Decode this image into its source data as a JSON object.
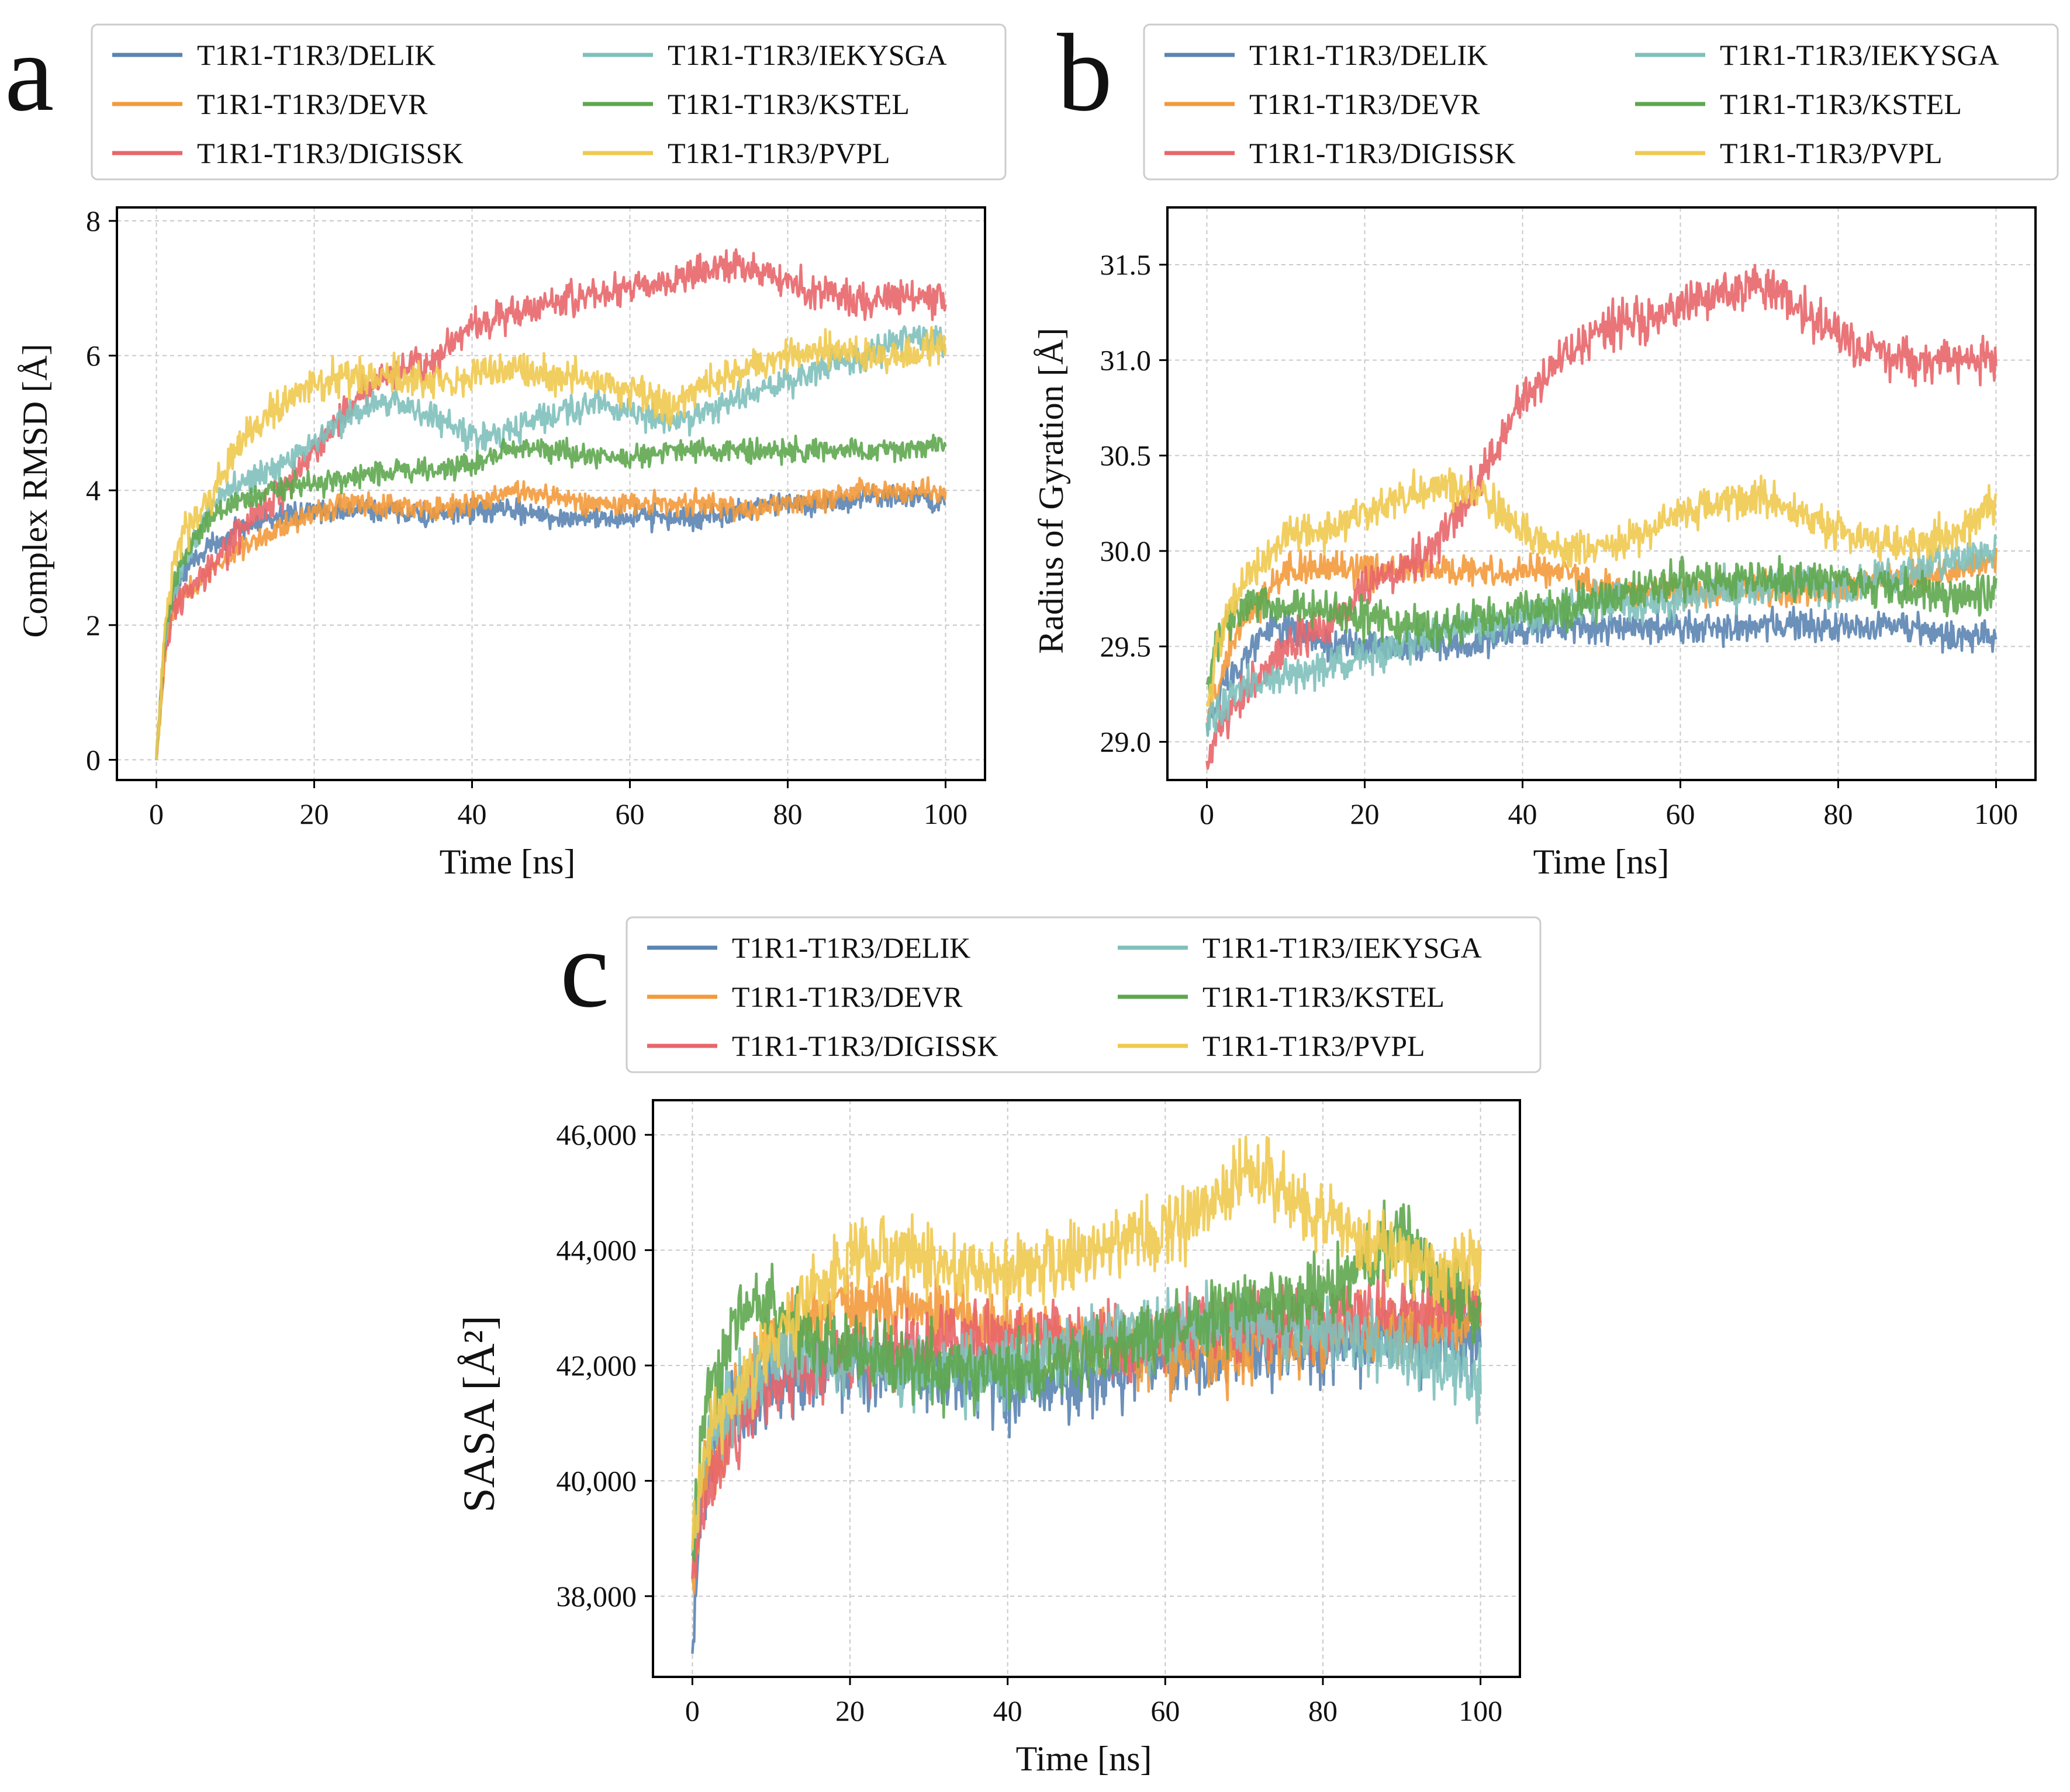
{
  "figure": {
    "panels_count": 3
  },
  "legend_labels": [
    "T1R1-T1R3/DELIK",
    "T1R1-T1R3/DEVR",
    "T1R1-T1R3/DIGISSK",
    "T1R1-T1R3/IEKYSGA",
    "T1R1-T1R3/KSTEL",
    "T1R1-T1R3/PVPL"
  ],
  "series_colors": {
    "T1R1-T1R3/DELIK": "#5b84b1",
    "T1R1-T1R3/DEVR": "#f39a3b",
    "T1R1-T1R3/DIGISSK": "#e8666a",
    "T1R1-T1R3/IEKYSGA": "#7fc0bb",
    "T1R1-T1R3/KSTEL": "#5ea74f",
    "T1R1-T1R3/PVPL": "#f0c94f"
  },
  "chart_data": [
    {
      "panel": "a",
      "type": "line",
      "title": "",
      "xlabel": "Time [ns]",
      "ylabel": "Complex RMSD [Å]",
      "xlim": [
        -5,
        105
      ],
      "ylim": [
        -0.3,
        8.2
      ],
      "xticks": [
        0,
        20,
        40,
        60,
        80,
        100
      ],
      "yticks": [
        0,
        2,
        4,
        6,
        8
      ],
      "ytick_labels": [
        "0",
        "2",
        "4",
        "6",
        "8"
      ],
      "legend_position": "top",
      "grid": true,
      "x": [
        0,
        1,
        2,
        3,
        5,
        7,
        10,
        15,
        20,
        25,
        30,
        35,
        40,
        45,
        50,
        55,
        60,
        65,
        70,
        75,
        80,
        85,
        90,
        95,
        100
      ],
      "series": [
        {
          "name": "T1R1-T1R3/DELIK",
          "noise": 0.12,
          "values": [
            0,
            1.6,
            2.3,
            2.7,
            3.0,
            3.2,
            3.4,
            3.6,
            3.7,
            3.7,
            3.7,
            3.6,
            3.7,
            3.7,
            3.6,
            3.6,
            3.6,
            3.6,
            3.6,
            3.7,
            3.8,
            3.8,
            3.9,
            3.9,
            3.8
          ]
        },
        {
          "name": "T1R1-T1R3/DEVR",
          "noise": 0.12,
          "values": [
            0,
            1.5,
            2.2,
            2.4,
            2.6,
            2.8,
            3.1,
            3.4,
            3.7,
            3.8,
            3.8,
            3.7,
            3.8,
            4.0,
            3.9,
            3.8,
            3.8,
            3.8,
            3.8,
            3.7,
            3.8,
            3.9,
            4.0,
            4.0,
            4.0
          ]
        },
        {
          "name": "T1R1-T1R3/DIGISSK",
          "noise": 0.18,
          "values": [
            0,
            1.6,
            2.2,
            2.4,
            2.6,
            2.8,
            3.3,
            3.9,
            4.6,
            5.3,
            5.8,
            5.9,
            6.5,
            6.6,
            6.8,
            6.9,
            7.0,
            7.1,
            7.3,
            7.3,
            7.1,
            6.9,
            6.8,
            6.9,
            6.8
          ]
        },
        {
          "name": "T1R1-T1R3/IEKYSGA",
          "noise": 0.15,
          "values": [
            0,
            1.7,
            2.4,
            2.8,
            3.3,
            3.8,
            4.1,
            4.3,
            4.7,
            5.2,
            5.3,
            5.1,
            4.8,
            4.9,
            5.1,
            5.3,
            5.2,
            5.0,
            5.2,
            5.4,
            5.6,
            5.8,
            6.0,
            6.3,
            6.2
          ]
        },
        {
          "name": "T1R1-T1R3/KSTEL",
          "noise": 0.12,
          "values": [
            0,
            1.8,
            2.5,
            2.9,
            3.3,
            3.6,
            3.8,
            4.0,
            4.1,
            4.2,
            4.3,
            4.3,
            4.4,
            4.6,
            4.6,
            4.5,
            4.5,
            4.6,
            4.6,
            4.6,
            4.6,
            4.6,
            4.6,
            4.6,
            4.7
          ]
        },
        {
          "name": "T1R1-T1R3/PVPL",
          "noise": 0.18,
          "values": [
            0,
            1.9,
            2.8,
            3.3,
            3.6,
            3.9,
            4.6,
            5.2,
            5.6,
            5.7,
            5.7,
            5.6,
            5.7,
            5.8,
            5.7,
            5.7,
            5.5,
            5.2,
            5.6,
            5.8,
            6.0,
            6.1,
            6.0,
            6.0,
            6.2
          ]
        }
      ]
    },
    {
      "panel": "b",
      "type": "line",
      "title": "",
      "xlabel": "Time [ns]",
      "ylabel": "Radius of Gyration [Å]",
      "xlim": [
        -5,
        105
      ],
      "ylim": [
        28.8,
        31.8
      ],
      "xticks": [
        0,
        20,
        40,
        60,
        80,
        100
      ],
      "yticks": [
        29.0,
        29.5,
        30.0,
        30.5,
        31.0,
        31.5
      ],
      "ytick_labels": [
        "29.0",
        "29.5",
        "30.0",
        "30.5",
        "31.0",
        "31.5"
      ],
      "legend_position": "top",
      "grid": true,
      "x": [
        0,
        2,
        4,
        6,
        8,
        10,
        15,
        20,
        25,
        30,
        35,
        40,
        45,
        50,
        55,
        60,
        65,
        70,
        75,
        80,
        85,
        90,
        95,
        100
      ],
      "series": [
        {
          "name": "T1R1-T1R3/DELIK",
          "noise": 0.06,
          "values": [
            29.1,
            29.3,
            29.4,
            29.5,
            29.6,
            29.6,
            29.5,
            29.5,
            29.5,
            29.5,
            29.5,
            29.6,
            29.6,
            29.6,
            29.6,
            29.6,
            29.6,
            29.6,
            29.6,
            29.6,
            29.6,
            29.6,
            29.55,
            29.55
          ]
        },
        {
          "name": "T1R1-T1R3/DEVR",
          "noise": 0.06,
          "values": [
            29.1,
            29.4,
            29.6,
            29.7,
            29.8,
            29.9,
            29.9,
            29.9,
            29.9,
            29.9,
            29.9,
            29.9,
            29.9,
            29.8,
            29.8,
            29.8,
            29.8,
            29.8,
            29.8,
            29.8,
            29.85,
            29.85,
            29.9,
            29.95
          ]
        },
        {
          "name": "T1R1-T1R3/DIGISSK",
          "noise": 0.08,
          "values": [
            28.9,
            29.1,
            29.2,
            29.3,
            29.4,
            29.5,
            29.6,
            29.8,
            29.9,
            30.1,
            30.4,
            30.8,
            31.0,
            31.15,
            31.2,
            31.3,
            31.35,
            31.4,
            31.3,
            31.1,
            31.05,
            31.0,
            31.0,
            31.0
          ]
        },
        {
          "name": "T1R1-T1R3/IEKYSGA",
          "noise": 0.07,
          "values": [
            29.1,
            29.2,
            29.3,
            29.3,
            29.3,
            29.35,
            29.4,
            29.45,
            29.5,
            29.6,
            29.6,
            29.65,
            29.7,
            29.75,
            29.7,
            29.75,
            29.8,
            29.8,
            29.85,
            29.8,
            29.85,
            29.9,
            29.95,
            30.0
          ]
        },
        {
          "name": "T1R1-T1R3/KSTEL",
          "noise": 0.07,
          "values": [
            29.3,
            29.6,
            29.7,
            29.75,
            29.7,
            29.7,
            29.7,
            29.65,
            29.6,
            29.6,
            29.65,
            29.7,
            29.7,
            29.75,
            29.8,
            29.85,
            29.85,
            29.85,
            29.85,
            29.85,
            29.8,
            29.8,
            29.75,
            29.8
          ]
        },
        {
          "name": "T1R1-T1R3/PVPL",
          "noise": 0.07,
          "values": [
            29.2,
            29.6,
            29.8,
            29.9,
            30.0,
            30.1,
            30.1,
            30.2,
            30.3,
            30.35,
            30.3,
            30.1,
            30.0,
            30.0,
            30.1,
            30.2,
            30.25,
            30.3,
            30.2,
            30.1,
            30.05,
            30.05,
            30.1,
            30.25
          ]
        }
      ]
    },
    {
      "panel": "c",
      "type": "line",
      "title": "",
      "xlabel": "Time [ns]",
      "ylabel": "SASA [Å²]",
      "xlim": [
        -5,
        105
      ],
      "ylim": [
        36600,
        46600
      ],
      "xticks": [
        0,
        20,
        40,
        60,
        80,
        100
      ],
      "yticks": [
        38000,
        40000,
        42000,
        44000,
        46000
      ],
      "ytick_labels": [
        "38,000",
        "40,000",
        "42,000",
        "44,000",
        "46,000"
      ],
      "legend_position": "top",
      "grid": true,
      "x": [
        0,
        1,
        2,
        4,
        6,
        8,
        10,
        15,
        20,
        25,
        30,
        35,
        40,
        45,
        50,
        55,
        60,
        65,
        70,
        75,
        80,
        85,
        90,
        95,
        100
      ],
      "series": [
        {
          "name": "T1R1-T1R3/DELIK",
          "noise": 450,
          "values": [
            37000,
            39500,
            40300,
            40800,
            41200,
            41500,
            41700,
            41900,
            42000,
            42000,
            41900,
            41800,
            41600,
            41700,
            41800,
            41900,
            42000,
            42100,
            42200,
            42300,
            42300,
            42400,
            42500,
            42400,
            42500
          ]
        },
        {
          "name": "T1R1-T1R3/DEVR",
          "noise": 450,
          "values": [
            38300,
            39600,
            40200,
            40800,
            41500,
            42000,
            42400,
            42800,
            43000,
            43100,
            42900,
            42800,
            42600,
            42500,
            42400,
            42300,
            42200,
            42200,
            42300,
            42400,
            42500,
            42600,
            42700,
            42800,
            42900
          ]
        },
        {
          "name": "T1R1-T1R3/DIGISSK",
          "noise": 450,
          "values": [
            38300,
            39300,
            39900,
            40400,
            40900,
            41300,
            41700,
            42000,
            42200,
            42300,
            42400,
            42500,
            42500,
            42500,
            42400,
            42400,
            42500,
            42600,
            42700,
            42800,
            42800,
            42900,
            43000,
            43000,
            43000
          ]
        },
        {
          "name": "T1R1-T1R3/IEKYSGA",
          "noise": 450,
          "values": [
            38700,
            40000,
            40600,
            41200,
            41600,
            41900,
            42100,
            42200,
            42100,
            41900,
            41800,
            41900,
            42000,
            42200,
            42400,
            42500,
            42600,
            42700,
            42800,
            42700,
            42600,
            42400,
            42200,
            42000,
            41800
          ]
        },
        {
          "name": "T1R1-T1R3/KSTEL",
          "noise": 450,
          "values": [
            38700,
            40500,
            41500,
            42300,
            42800,
            43000,
            42900,
            42500,
            42200,
            42100,
            42000,
            41900,
            41900,
            42000,
            42200,
            42400,
            42600,
            42800,
            43000,
            43100,
            43300,
            43600,
            44200,
            43500,
            42800
          ]
        },
        {
          "name": "T1R1-T1R3/PVPL",
          "noise": 450,
          "values": [
            38800,
            40000,
            40700,
            41200,
            41500,
            41900,
            42500,
            43300,
            43900,
            44000,
            43900,
            43700,
            43600,
            43700,
            43900,
            44100,
            44300,
            44700,
            45400,
            45100,
            44500,
            44100,
            43900,
            43700,
            43800
          ]
        }
      ]
    }
  ]
}
